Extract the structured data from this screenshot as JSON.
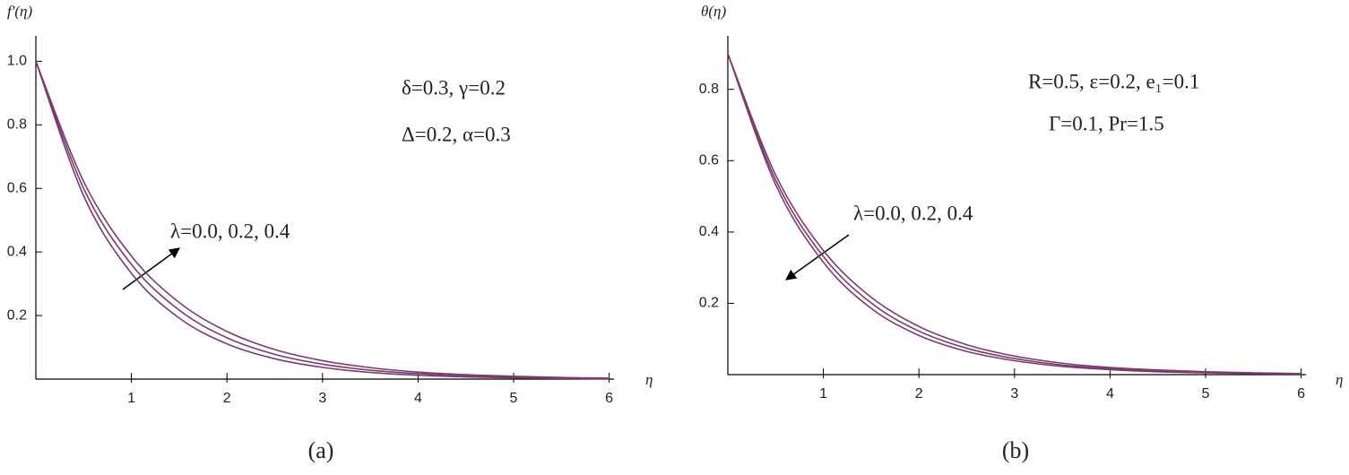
{
  "chart_data": [
    {
      "type": "line",
      "ylabel": "f'(η)",
      "xlabel": "η",
      "caption": "(a)",
      "annotations": [
        "δ=0.3, γ=0.2",
        "Δ=0.2, α=0.3",
        "λ=0.0, 0.2, 0.4"
      ],
      "x": [
        0,
        0.5,
        1,
        1.5,
        2,
        2.5,
        3,
        3.5,
        4,
        4.5,
        5,
        5.5,
        6
      ],
      "series": [
        {
          "color": "#7d3a6e",
          "values": [
            1,
            0.577,
            0.333,
            0.192,
            0.111,
            0.064,
            0.037,
            0.021,
            0.012,
            0.007,
            0.004,
            0.002,
            0.001
          ]
        },
        {
          "color": "#7d3a6e",
          "values": [
            1,
            0.6,
            0.361,
            0.217,
            0.13,
            0.078,
            0.047,
            0.028,
            0.017,
            0.01,
            0.006,
            0.004,
            0.002
          ]
        },
        {
          "color": "#7d3a6e",
          "values": [
            1,
            0.622,
            0.387,
            0.241,
            0.15,
            0.093,
            0.058,
            0.036,
            0.022,
            0.014,
            0.009,
            0.005,
            0.003
          ]
        }
      ],
      "xlim": [
        0,
        6.05
      ],
      "ylim": [
        0,
        1.08
      ],
      "xticks": [
        1,
        2,
        3,
        4,
        5,
        6
      ],
      "yticks": [
        0.2,
        0.4,
        0.6,
        0.8,
        {
          "value": 1,
          "label": "1.0"
        }
      ]
    },
    {
      "type": "line",
      "ylabel": "θ(η)",
      "xlabel": "η",
      "caption": "(b)",
      "annotations": [
        "R=0.5, ε=0.2, e₁=0.1",
        "Γ=0.1, Pr=1.5",
        "λ=0.0, 0.2, 0.4"
      ],
      "x": [
        0,
        0.5,
        1,
        1.5,
        2,
        2.5,
        3,
        3.5,
        4,
        4.5,
        5,
        5.5,
        6
      ],
      "series": [
        {
          "color": "#7d3a6e",
          "values": [
            0.9,
            0.533,
            0.315,
            0.186,
            0.11,
            0.065,
            0.039,
            0.023,
            0.014,
            0.008,
            0.005,
            0.003,
            0.002
          ]
        },
        {
          "color": "#7d3a6e",
          "values": [
            0.9,
            0.546,
            0.331,
            0.201,
            0.122,
            0.074,
            0.045,
            0.027,
            0.017,
            0.01,
            0.006,
            0.004,
            0.002
          ]
        },
        {
          "color": "#7d3a6e",
          "values": [
            0.9,
            0.56,
            0.348,
            0.217,
            0.135,
            0.084,
            0.052,
            0.032,
            0.02,
            0.013,
            0.008,
            0.005,
            0.003
          ]
        }
      ],
      "xlim": [
        0,
        6.05
      ],
      "ylim": [
        0,
        0.95
      ],
      "xticks": [
        1,
        2,
        3,
        4,
        5,
        6
      ],
      "yticks": [
        0.2,
        0.4,
        0.6,
        0.8
      ]
    }
  ]
}
